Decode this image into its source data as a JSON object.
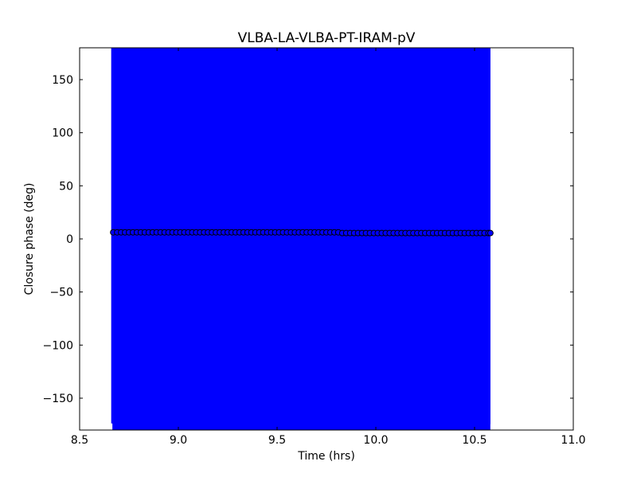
{
  "chart_data": {
    "type": "scatter",
    "title": "VLBA-LA-VLBA-PT-IRAM-pV",
    "xlabel": "Time (hrs)",
    "ylabel": "Closure phase (deg)",
    "xlim": [
      8.5,
      11.0
    ],
    "ylim": [
      -180,
      180
    ],
    "xticks": [
      "8.5",
      "9.0",
      "9.5",
      "10.0",
      "10.5",
      "11.0"
    ],
    "yticks": [
      "−150",
      "−100",
      "−50",
      "0",
      "50",
      "100",
      "150"
    ],
    "grid": false,
    "marker_color": "#0000ff",
    "errorbar_color": "#0000ff",
    "yerr": 180,
    "x": [
      8.67,
      8.69,
      8.71,
      8.73,
      8.75,
      8.77,
      8.79,
      8.81,
      8.83,
      8.85,
      8.87,
      8.89,
      8.91,
      8.93,
      8.95,
      8.97,
      8.99,
      9.01,
      9.03,
      9.05,
      9.07,
      9.09,
      9.11,
      9.13,
      9.15,
      9.17,
      9.19,
      9.21,
      9.23,
      9.25,
      9.27,
      9.29,
      9.31,
      9.33,
      9.35,
      9.37,
      9.39,
      9.41,
      9.43,
      9.45,
      9.47,
      9.49,
      9.51,
      9.53,
      9.55,
      9.57,
      9.59,
      9.61,
      9.63,
      9.65,
      9.67,
      9.69,
      9.71,
      9.73,
      9.75,
      9.77,
      9.79,
      9.81,
      9.83,
      9.85,
      9.87,
      9.89,
      9.91,
      9.93,
      9.95,
      9.97,
      9.99,
      10.01,
      10.03,
      10.05,
      10.07,
      10.09,
      10.11,
      10.13,
      10.15,
      10.17,
      10.19,
      10.21,
      10.23,
      10.25,
      10.27,
      10.29,
      10.31,
      10.33,
      10.35,
      10.37,
      10.39,
      10.41,
      10.43,
      10.45,
      10.47,
      10.49,
      10.51,
      10.53,
      10.55,
      10.57
    ],
    "y_segments": [
      {
        "x_from": 8.67,
        "x_to": 9.82,
        "y": 6.2
      },
      {
        "x_from": 9.83,
        "x_to": 10.58,
        "y": 5.5
      }
    ]
  }
}
